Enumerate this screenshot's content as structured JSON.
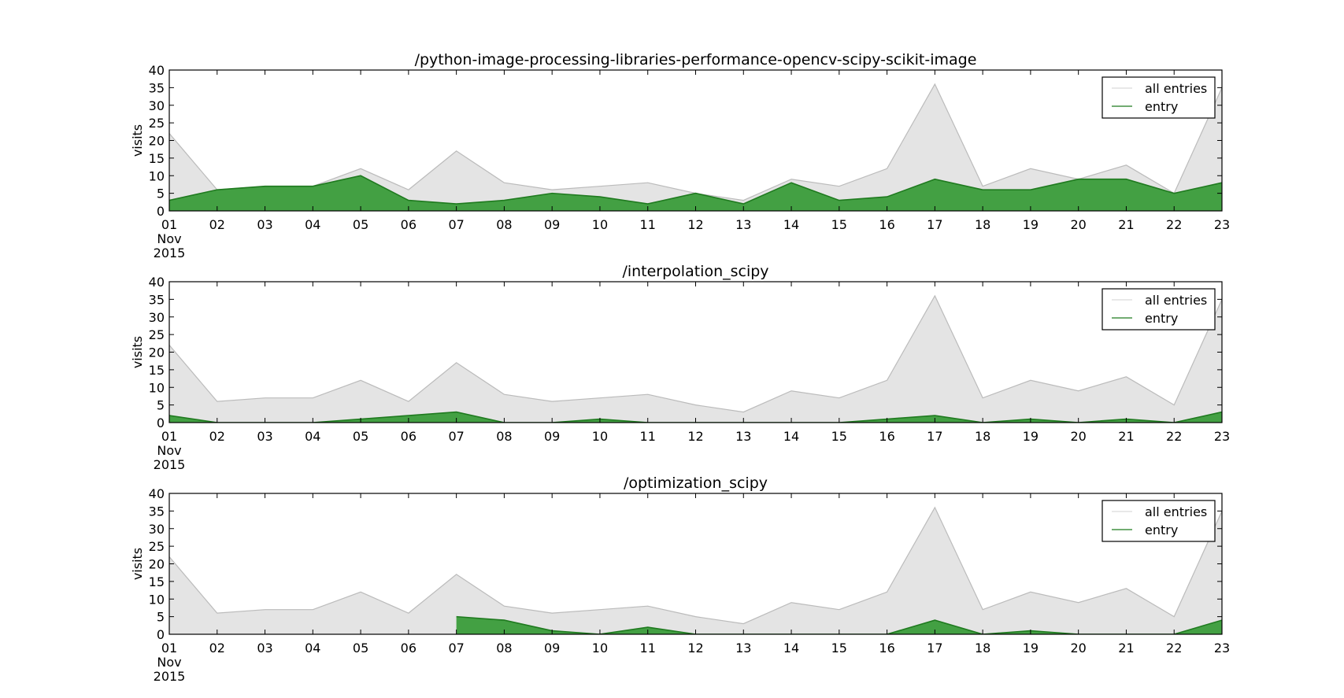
{
  "chart_data": [
    {
      "type": "area",
      "title": "/python-image-processing-libraries-performance-opencv-scipy-scikit-image",
      "xlabel": "",
      "ylabel": "visits",
      "ylim": [
        0,
        40
      ],
      "yticks": [
        0,
        5,
        10,
        15,
        20,
        25,
        30,
        35,
        40
      ],
      "x": [
        "01",
        "02",
        "03",
        "04",
        "05",
        "06",
        "07",
        "08",
        "09",
        "10",
        "11",
        "12",
        "13",
        "14",
        "15",
        "16",
        "17",
        "18",
        "19",
        "20",
        "21",
        "22",
        "23"
      ],
      "x_first_extra": [
        "Nov",
        "2015"
      ],
      "legend_position": "top-right",
      "grid": false,
      "series": [
        {
          "name": "all entries",
          "color": "#bbbbbb",
          "fill": "#e4e4e4",
          "values": [
            22,
            6,
            7,
            7,
            12,
            6,
            17,
            8,
            6,
            7,
            8,
            5,
            3,
            9,
            7,
            12,
            36,
            7,
            12,
            9,
            13,
            5,
            35
          ]
        },
        {
          "name": "entry",
          "color": "#1f7a1f",
          "fill": "#43a043",
          "values": [
            3,
            6,
            7,
            7,
            10,
            3,
            2,
            3,
            5,
            4,
            2,
            5,
            2,
            8,
            3,
            4,
            9,
            6,
            6,
            9,
            9,
            5,
            8
          ]
        }
      ]
    },
    {
      "type": "area",
      "title": "/interpolation_scipy",
      "xlabel": "",
      "ylabel": "visits",
      "ylim": [
        0,
        40
      ],
      "yticks": [
        0,
        5,
        10,
        15,
        20,
        25,
        30,
        35,
        40
      ],
      "x": [
        "01",
        "02",
        "03",
        "04",
        "05",
        "06",
        "07",
        "08",
        "09",
        "10",
        "11",
        "12",
        "13",
        "14",
        "15",
        "16",
        "17",
        "18",
        "19",
        "20",
        "21",
        "22",
        "23"
      ],
      "x_first_extra": [
        "Nov",
        "2015"
      ],
      "legend_position": "top-right",
      "grid": false,
      "series": [
        {
          "name": "all entries",
          "color": "#bbbbbb",
          "fill": "#e4e4e4",
          "values": [
            22,
            6,
            7,
            7,
            12,
            6,
            17,
            8,
            6,
            7,
            8,
            5,
            3,
            9,
            7,
            12,
            36,
            7,
            12,
            9,
            13,
            5,
            35
          ]
        },
        {
          "name": "entry",
          "color": "#1f7a1f",
          "fill": "#43a043",
          "values": [
            2,
            0,
            0,
            0,
            1,
            2,
            3,
            0,
            0,
            1,
            0,
            0,
            0,
            0,
            0,
            1,
            2,
            0,
            1,
            0,
            1,
            0,
            3
          ]
        }
      ]
    },
    {
      "type": "area",
      "title": "/optimization_scipy",
      "xlabel": "",
      "ylabel": "visits",
      "ylim": [
        0,
        40
      ],
      "yticks": [
        0,
        5,
        10,
        15,
        20,
        25,
        30,
        35,
        40
      ],
      "x": [
        "01",
        "02",
        "03",
        "04",
        "05",
        "06",
        "07",
        "08",
        "09",
        "10",
        "11",
        "12",
        "13",
        "14",
        "15",
        "16",
        "17",
        "18",
        "19",
        "20",
        "21",
        "22",
        "23"
      ],
      "x_first_extra": [
        "Nov",
        "2015"
      ],
      "legend_position": "top-right",
      "grid": false,
      "series": [
        {
          "name": "all entries",
          "color": "#bbbbbb",
          "fill": "#e4e4e4",
          "values": [
            22,
            6,
            7,
            7,
            12,
            6,
            17,
            8,
            6,
            7,
            8,
            5,
            3,
            9,
            7,
            12,
            36,
            7,
            12,
            9,
            13,
            5,
            35
          ]
        },
        {
          "name": "entry",
          "color": "#1f7a1f",
          "fill": "#43a043",
          "values": [
            null,
            null,
            null,
            null,
            null,
            null,
            5,
            4,
            1,
            0,
            2,
            0,
            0,
            0,
            0,
            0,
            4,
            0,
            1,
            0,
            0,
            0,
            4
          ]
        }
      ]
    }
  ]
}
